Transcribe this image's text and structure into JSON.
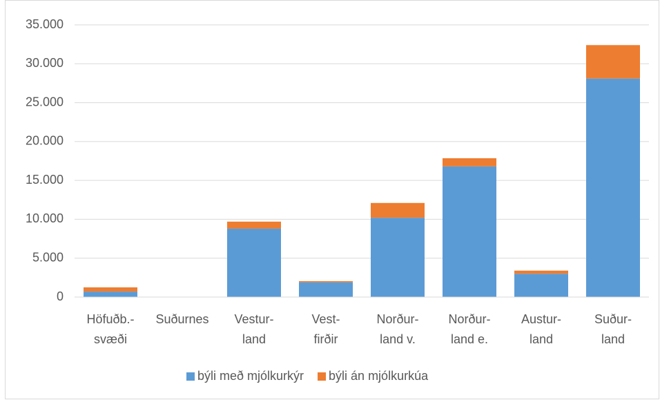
{
  "chart_data": {
    "type": "stacked_bar",
    "categories": [
      "Höfuðb.-\nsvæði",
      "Suðurnes",
      "Vestur-\nland",
      "Vest-\nfirðir",
      "Norður-\nland v.",
      "Norður-\nland e.",
      "Austur-\nland",
      "Suður-\nland"
    ],
    "series": [
      {
        "name": "býli með mjólkurkýr",
        "color": "#5b9bd5",
        "values": [
          700,
          0,
          8800,
          1900,
          10200,
          16800,
          3000,
          28100
        ]
      },
      {
        "name": "býli án mjólkurkúa",
        "color": "#ed7d31",
        "values": [
          550,
          0,
          900,
          150,
          1900,
          1050,
          400,
          4300
        ]
      }
    ],
    "ylim": [
      0,
      35000
    ],
    "yticks": [
      0,
      {
        "value": 5000,
        "label": "5.000"
      },
      {
        "value": 10000,
        "label": "10.000"
      },
      {
        "value": 15000,
        "label": "15.000"
      },
      {
        "value": 20000,
        "label": "20.000"
      },
      {
        "value": 25000,
        "label": "25.000"
      },
      {
        "value": 30000,
        "label": "30.000"
      },
      {
        "value": 35000,
        "label": "35.000"
      }
    ],
    "grid": true,
    "legend": "bottom"
  }
}
